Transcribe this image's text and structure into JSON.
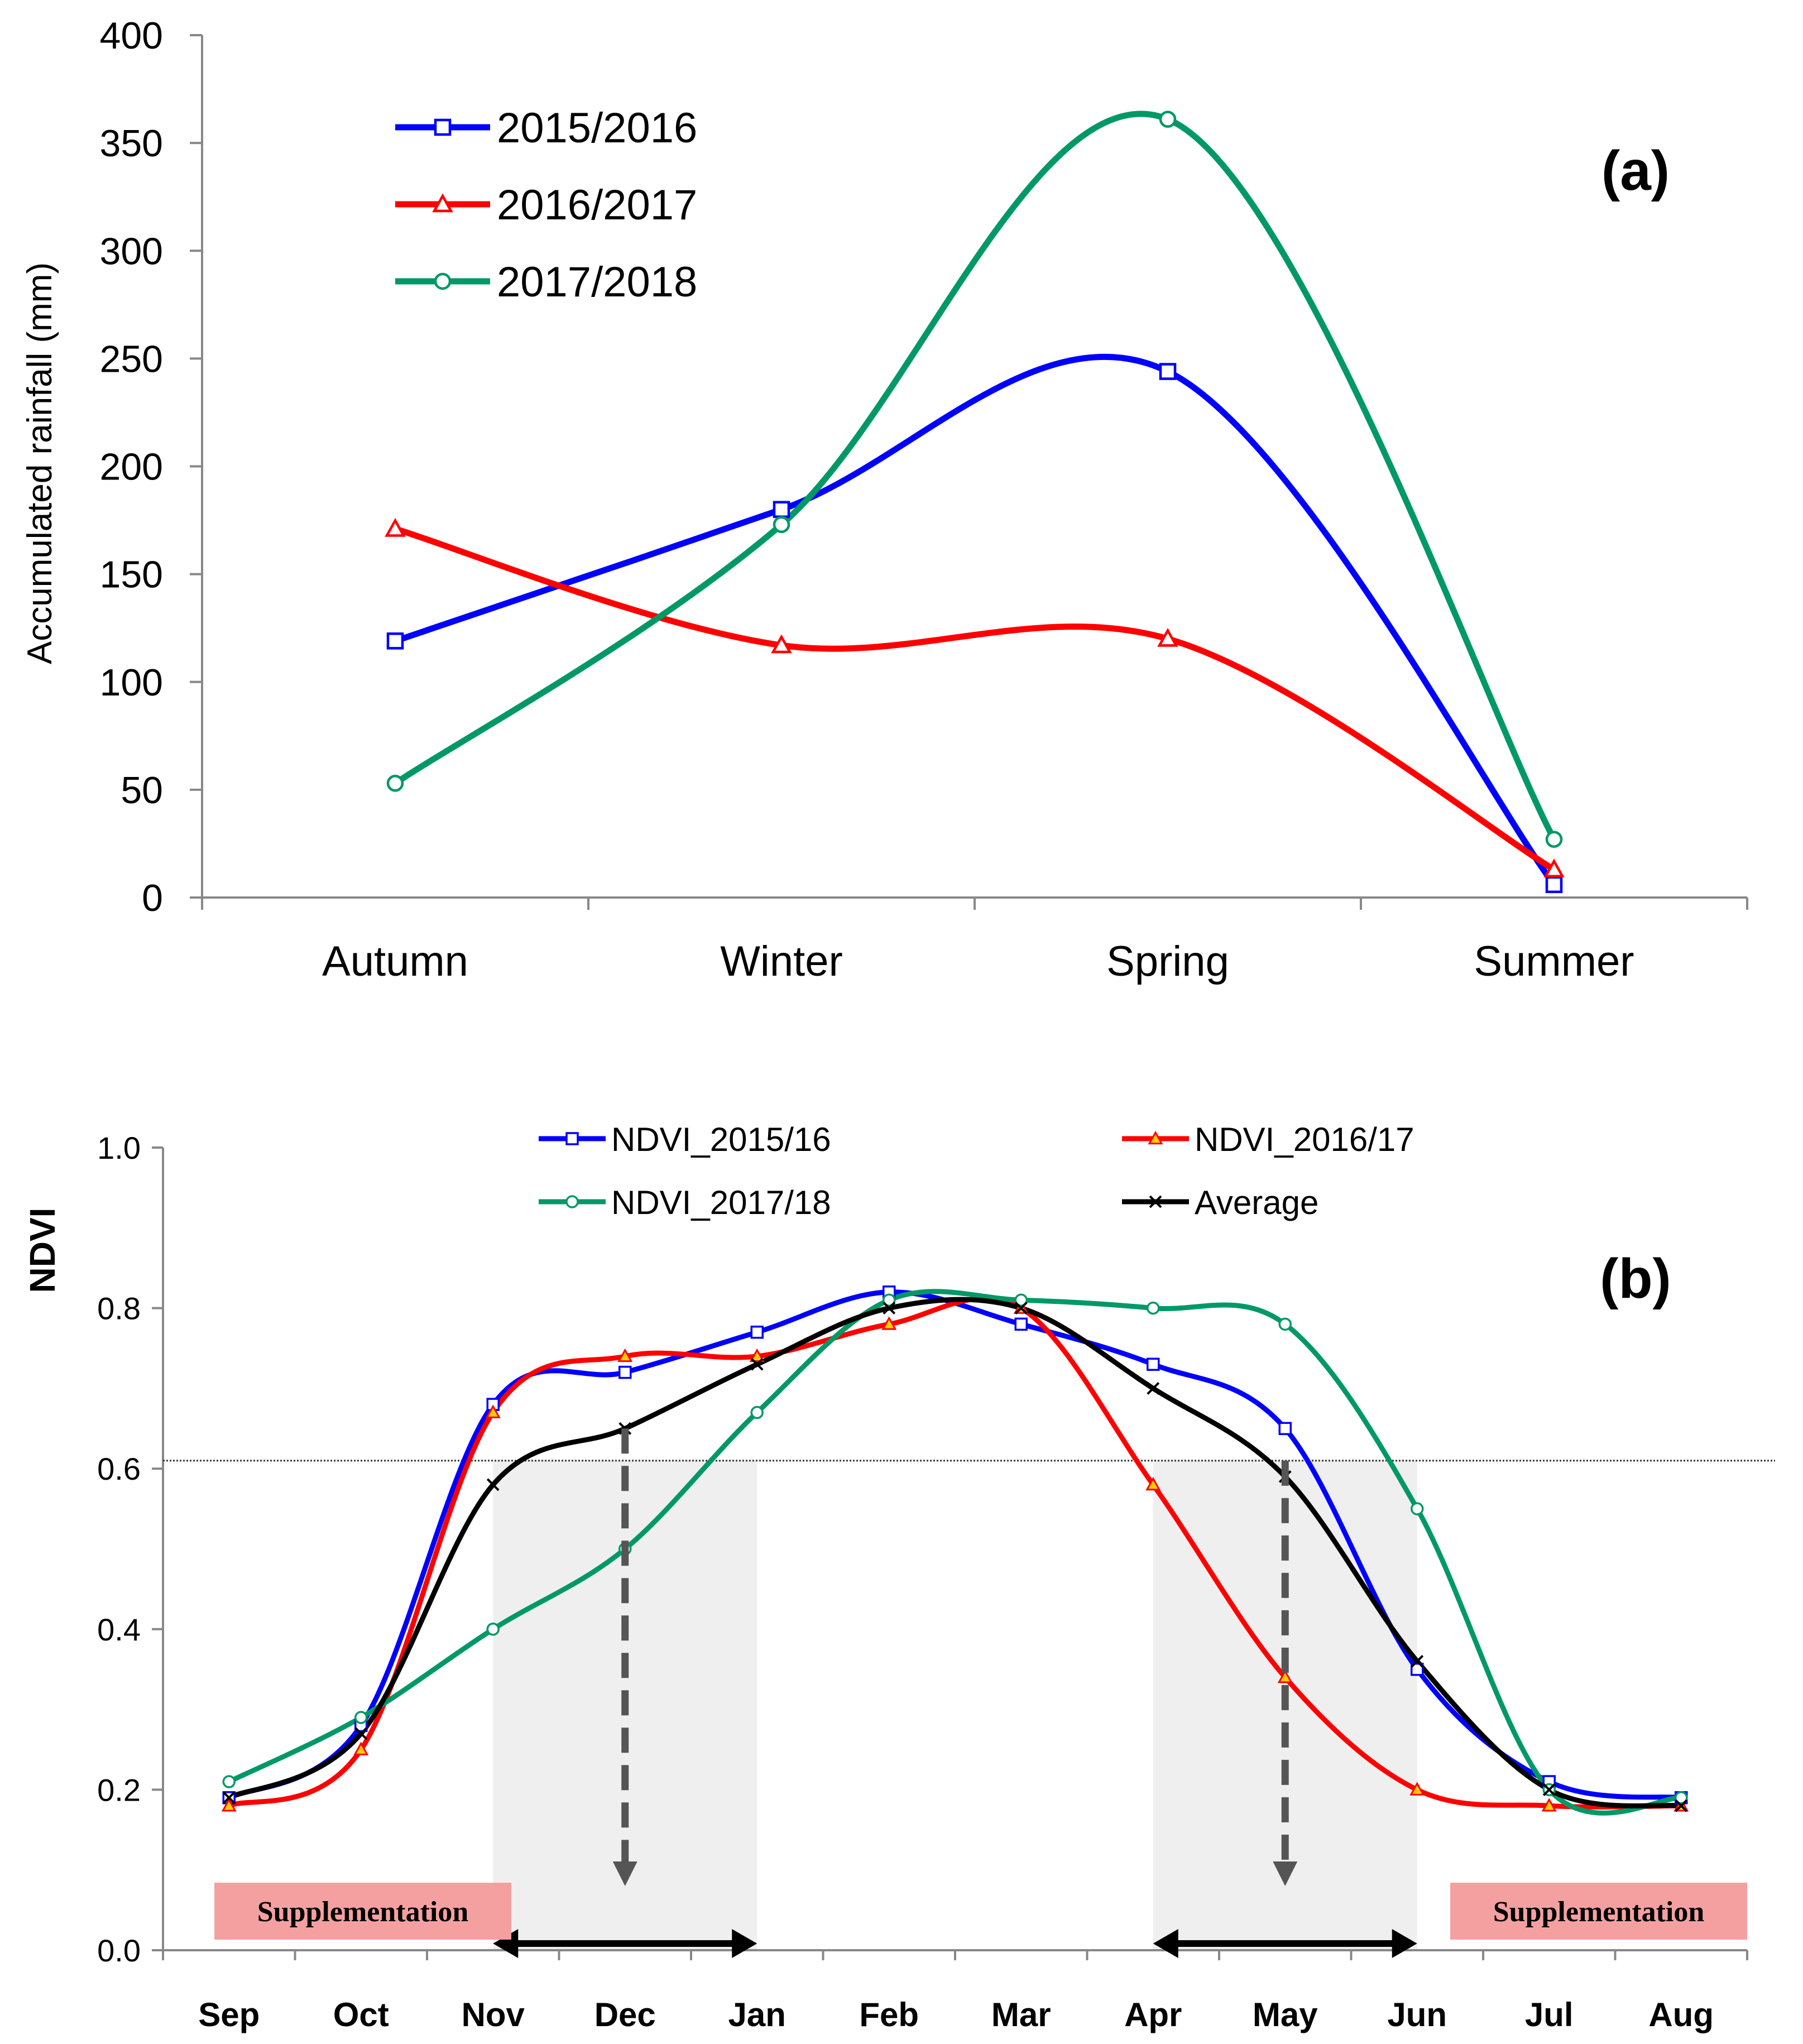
{
  "chart_data": [
    {
      "panel": "(a)",
      "type": "line",
      "smooth": true,
      "ylabel": "Accumulated rainfall (mm)",
      "xlabel": "",
      "categories": [
        "Autumn",
        "Winter",
        "Spring",
        "Summer"
      ],
      "ylim": [
        0,
        400
      ],
      "yticks": [
        "0",
        "50",
        "100",
        "150",
        "200",
        "250",
        "300",
        "350",
        "400"
      ],
      "legend_position": "top-left",
      "grid": false,
      "series": [
        {
          "name": "2015/2016",
          "color": "#0000ff",
          "marker": "square",
          "values": [
            119,
            180,
            244,
            6
          ]
        },
        {
          "name": "2016/2017",
          "color": "#ff0000",
          "marker": "triangle",
          "values": [
            171,
            117,
            120,
            13
          ]
        },
        {
          "name": "2017/2018",
          "color": "#009966",
          "marker": "circle",
          "values": [
            53,
            173,
            361,
            27
          ]
        }
      ]
    },
    {
      "panel": "(b)",
      "type": "line",
      "smooth": true,
      "ylabel": "NDVI",
      "xlabel": "",
      "categories": [
        "Sep",
        "Oct",
        "Nov",
        "Dec",
        "Jan",
        "Feb",
        "Mar",
        "Apr",
        "May",
        "Jun",
        "Jul",
        "Aug"
      ],
      "ylim": [
        0,
        1
      ],
      "yticks": [
        "0.0",
        "0.2",
        "0.4",
        "0.6",
        "0.8",
        "1.0"
      ],
      "threshold": 0.61,
      "legend_position": "top",
      "grid": false,
      "shaded_periods": [
        [
          "Nov",
          "Jan"
        ],
        [
          "Apr",
          "Jun"
        ]
      ],
      "arrow_positions": [
        {
          "month": "Dec",
          "from": 0.65,
          "to": 0.08
        },
        {
          "month": "May",
          "from": 0.61,
          "to": 0.08
        }
      ],
      "supplementation": [
        {
          "label": "Supplementation",
          "from": "Sep",
          "to": "Nov"
        },
        {
          "label": "Supplementation",
          "from": "Jun",
          "to": "Aug"
        }
      ],
      "series": [
        {
          "name": "NDVI_2015/16",
          "color": "#0000ff",
          "marker": "square",
          "values": [
            0.19,
            0.28,
            0.68,
            0.72,
            0.77,
            0.82,
            0.78,
            0.73,
            0.65,
            0.35,
            0.21,
            0.19
          ]
        },
        {
          "name": "NDVI_2016/17",
          "color": "#ff0000",
          "marker": "triangle",
          "values": [
            0.18,
            0.25,
            0.67,
            0.74,
            0.74,
            0.78,
            0.8,
            0.58,
            0.34,
            0.2,
            0.18,
            0.18
          ]
        },
        {
          "name": "NDVI_2017/18",
          "color": "#009966",
          "marker": "circle",
          "values": [
            0.21,
            0.29,
            0.4,
            0.5,
            0.67,
            0.81,
            0.81,
            0.8,
            0.78,
            0.55,
            0.2,
            0.19
          ]
        },
        {
          "name": "Average",
          "color": "#000000",
          "marker": "x",
          "values": [
            0.19,
            0.27,
            0.58,
            0.65,
            0.73,
            0.8,
            0.8,
            0.7,
            0.59,
            0.36,
            0.2,
            0.18
          ]
        }
      ]
    }
  ]
}
